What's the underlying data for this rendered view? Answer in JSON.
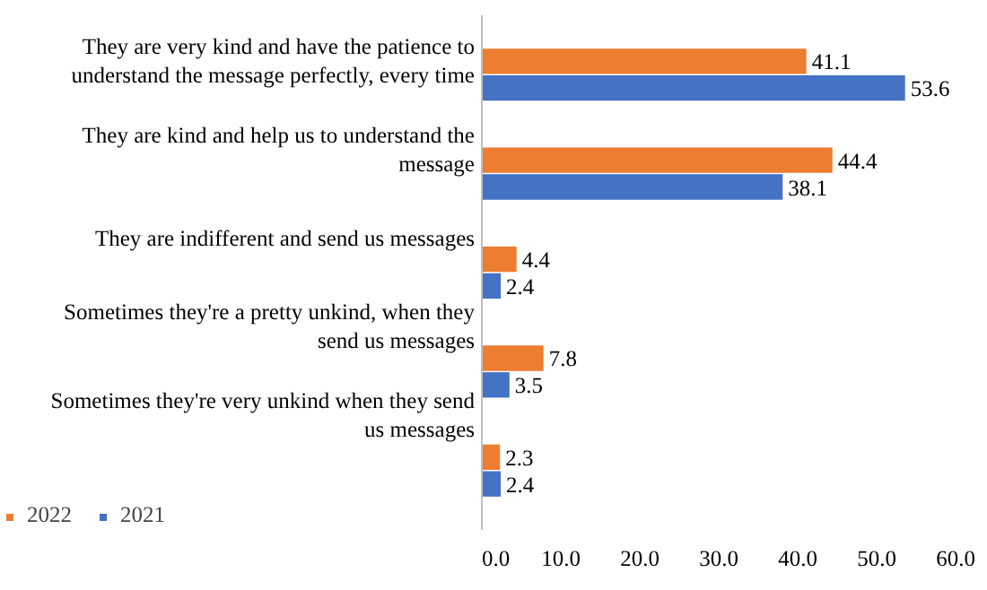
{
  "chart_data": {
    "type": "bar",
    "orientation": "horizontal",
    "categories": [
      "They are very kind and have the patience to understand the message perfectly, every time",
      "They are kind and help us to understand the message",
      "They are indifferent and send us messages",
      "Sometimes they're a pretty unkind, when they send us messages",
      "Sometimes they're very unkind when they send us messages"
    ],
    "series": [
      {
        "name": "2022",
        "color": "#ed7d31",
        "values": [
          41.1,
          44.4,
          4.4,
          7.8,
          2.3
        ]
      },
      {
        "name": "2021",
        "color": "#4472c4",
        "values": [
          53.6,
          38.1,
          2.4,
          3.5,
          2.4
        ]
      }
    ],
    "xlim": [
      0,
      60
    ],
    "xticks": [
      {
        "value": 0,
        "label": "0.0"
      },
      {
        "value": 10,
        "label": "10.0"
      },
      {
        "value": 20,
        "label": "20.0"
      },
      {
        "value": 30,
        "label": "30.0"
      },
      {
        "value": 40,
        "label": "40.0"
      },
      {
        "value": 50,
        "label": "50.0"
      },
      {
        "value": 60,
        "label": "60.0"
      }
    ],
    "data_labels": true,
    "grid": false,
    "legend": "bottom left"
  }
}
